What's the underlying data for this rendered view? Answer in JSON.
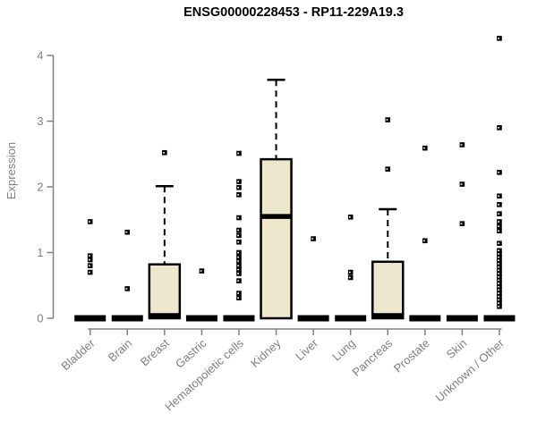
{
  "chart_data": {
    "type": "boxplot",
    "title": "ENSG00000228453 - RP11-229A19.3",
    "ylabel": "Expression",
    "ylim": [
      0,
      4.35
    ],
    "yticks": [
      0,
      1,
      2,
      3,
      4
    ],
    "grid": false,
    "box_fill": "#EDE7CE",
    "box_border": "#000000",
    "axis_color": "#808080",
    "label_color": "#808080",
    "categories": [
      "Bladder",
      "Brain",
      "Breast",
      "Gastric",
      "Hematopoietic cells",
      "Kidney",
      "Liver",
      "Lung",
      "Pancreas",
      "Prostate",
      "Skin",
      "Unknown / Other"
    ],
    "series": [
      {
        "category": "Bladder",
        "q1": 0,
        "median": 0,
        "q3": 0,
        "whisker_low": 0,
        "whisker_high": 0,
        "outliers": [
          1.47,
          0.95,
          0.89,
          0.8,
          0.7
        ]
      },
      {
        "category": "Brain",
        "q1": 0,
        "median": 0,
        "q3": 0,
        "whisker_low": 0,
        "whisker_high": 0,
        "outliers": [
          1.31,
          0.45
        ]
      },
      {
        "category": "Breast",
        "q1": 0,
        "median": 0,
        "q3": 0.82,
        "whisker_low": 0,
        "whisker_high": 2.01,
        "outliers": [
          2.52
        ]
      },
      {
        "category": "Gastric",
        "q1": 0,
        "median": 0,
        "q3": 0,
        "whisker_low": 0,
        "whisker_high": 0,
        "outliers": [
          0.72
        ]
      },
      {
        "category": "Hematopoietic cells",
        "q1": 0,
        "median": 0,
        "q3": 0,
        "whisker_low": 0,
        "whisker_high": 0,
        "outliers": [
          2.51,
          2.08,
          1.99,
          1.88,
          1.53,
          1.34,
          1.26,
          1.16,
          1.0,
          0.93,
          0.87,
          0.8,
          0.74,
          0.68,
          0.57,
          0.38,
          0.31
        ]
      },
      {
        "category": "Kidney",
        "q1": 0,
        "median": 1.55,
        "q3": 2.42,
        "whisker_low": 0,
        "whisker_high": 3.63,
        "outliers": []
      },
      {
        "category": "Liver",
        "q1": 0,
        "median": 0,
        "q3": 0,
        "whisker_low": 0,
        "whisker_high": 0,
        "outliers": [
          1.21
        ]
      },
      {
        "category": "Lung",
        "q1": 0,
        "median": 0,
        "q3": 0,
        "whisker_low": 0,
        "whisker_high": 0,
        "outliers": [
          1.54,
          0.7,
          0.62
        ]
      },
      {
        "category": "Pancreas",
        "q1": 0,
        "median": 0,
        "q3": 0.86,
        "whisker_low": 0,
        "whisker_high": 1.66,
        "outliers": [
          3.02,
          2.27
        ]
      },
      {
        "category": "Prostate",
        "q1": 0,
        "median": 0,
        "q3": 0,
        "whisker_low": 0,
        "whisker_high": 0,
        "outliers": [
          2.59,
          1.18
        ]
      },
      {
        "category": "Skin",
        "q1": 0,
        "median": 0,
        "q3": 0,
        "whisker_low": 0,
        "whisker_high": 0,
        "outliers": [
          2.64,
          2.04,
          1.44
        ]
      },
      {
        "category": "Unknown / Other",
        "q1": 0,
        "median": 0,
        "q3": 0,
        "whisker_low": 0,
        "whisker_high": 0,
        "outliers": [
          4.26,
          2.9,
          2.22,
          1.86,
          1.73,
          1.59,
          1.47,
          1.4,
          1.33,
          1.14,
          1.03,
          0.98,
          0.93,
          0.88,
          0.83,
          0.78,
          0.73,
          0.68,
          0.63,
          0.58,
          0.53,
          0.48,
          0.43,
          0.38,
          0.33,
          0.28,
          0.23,
          0.18
        ]
      }
    ]
  }
}
